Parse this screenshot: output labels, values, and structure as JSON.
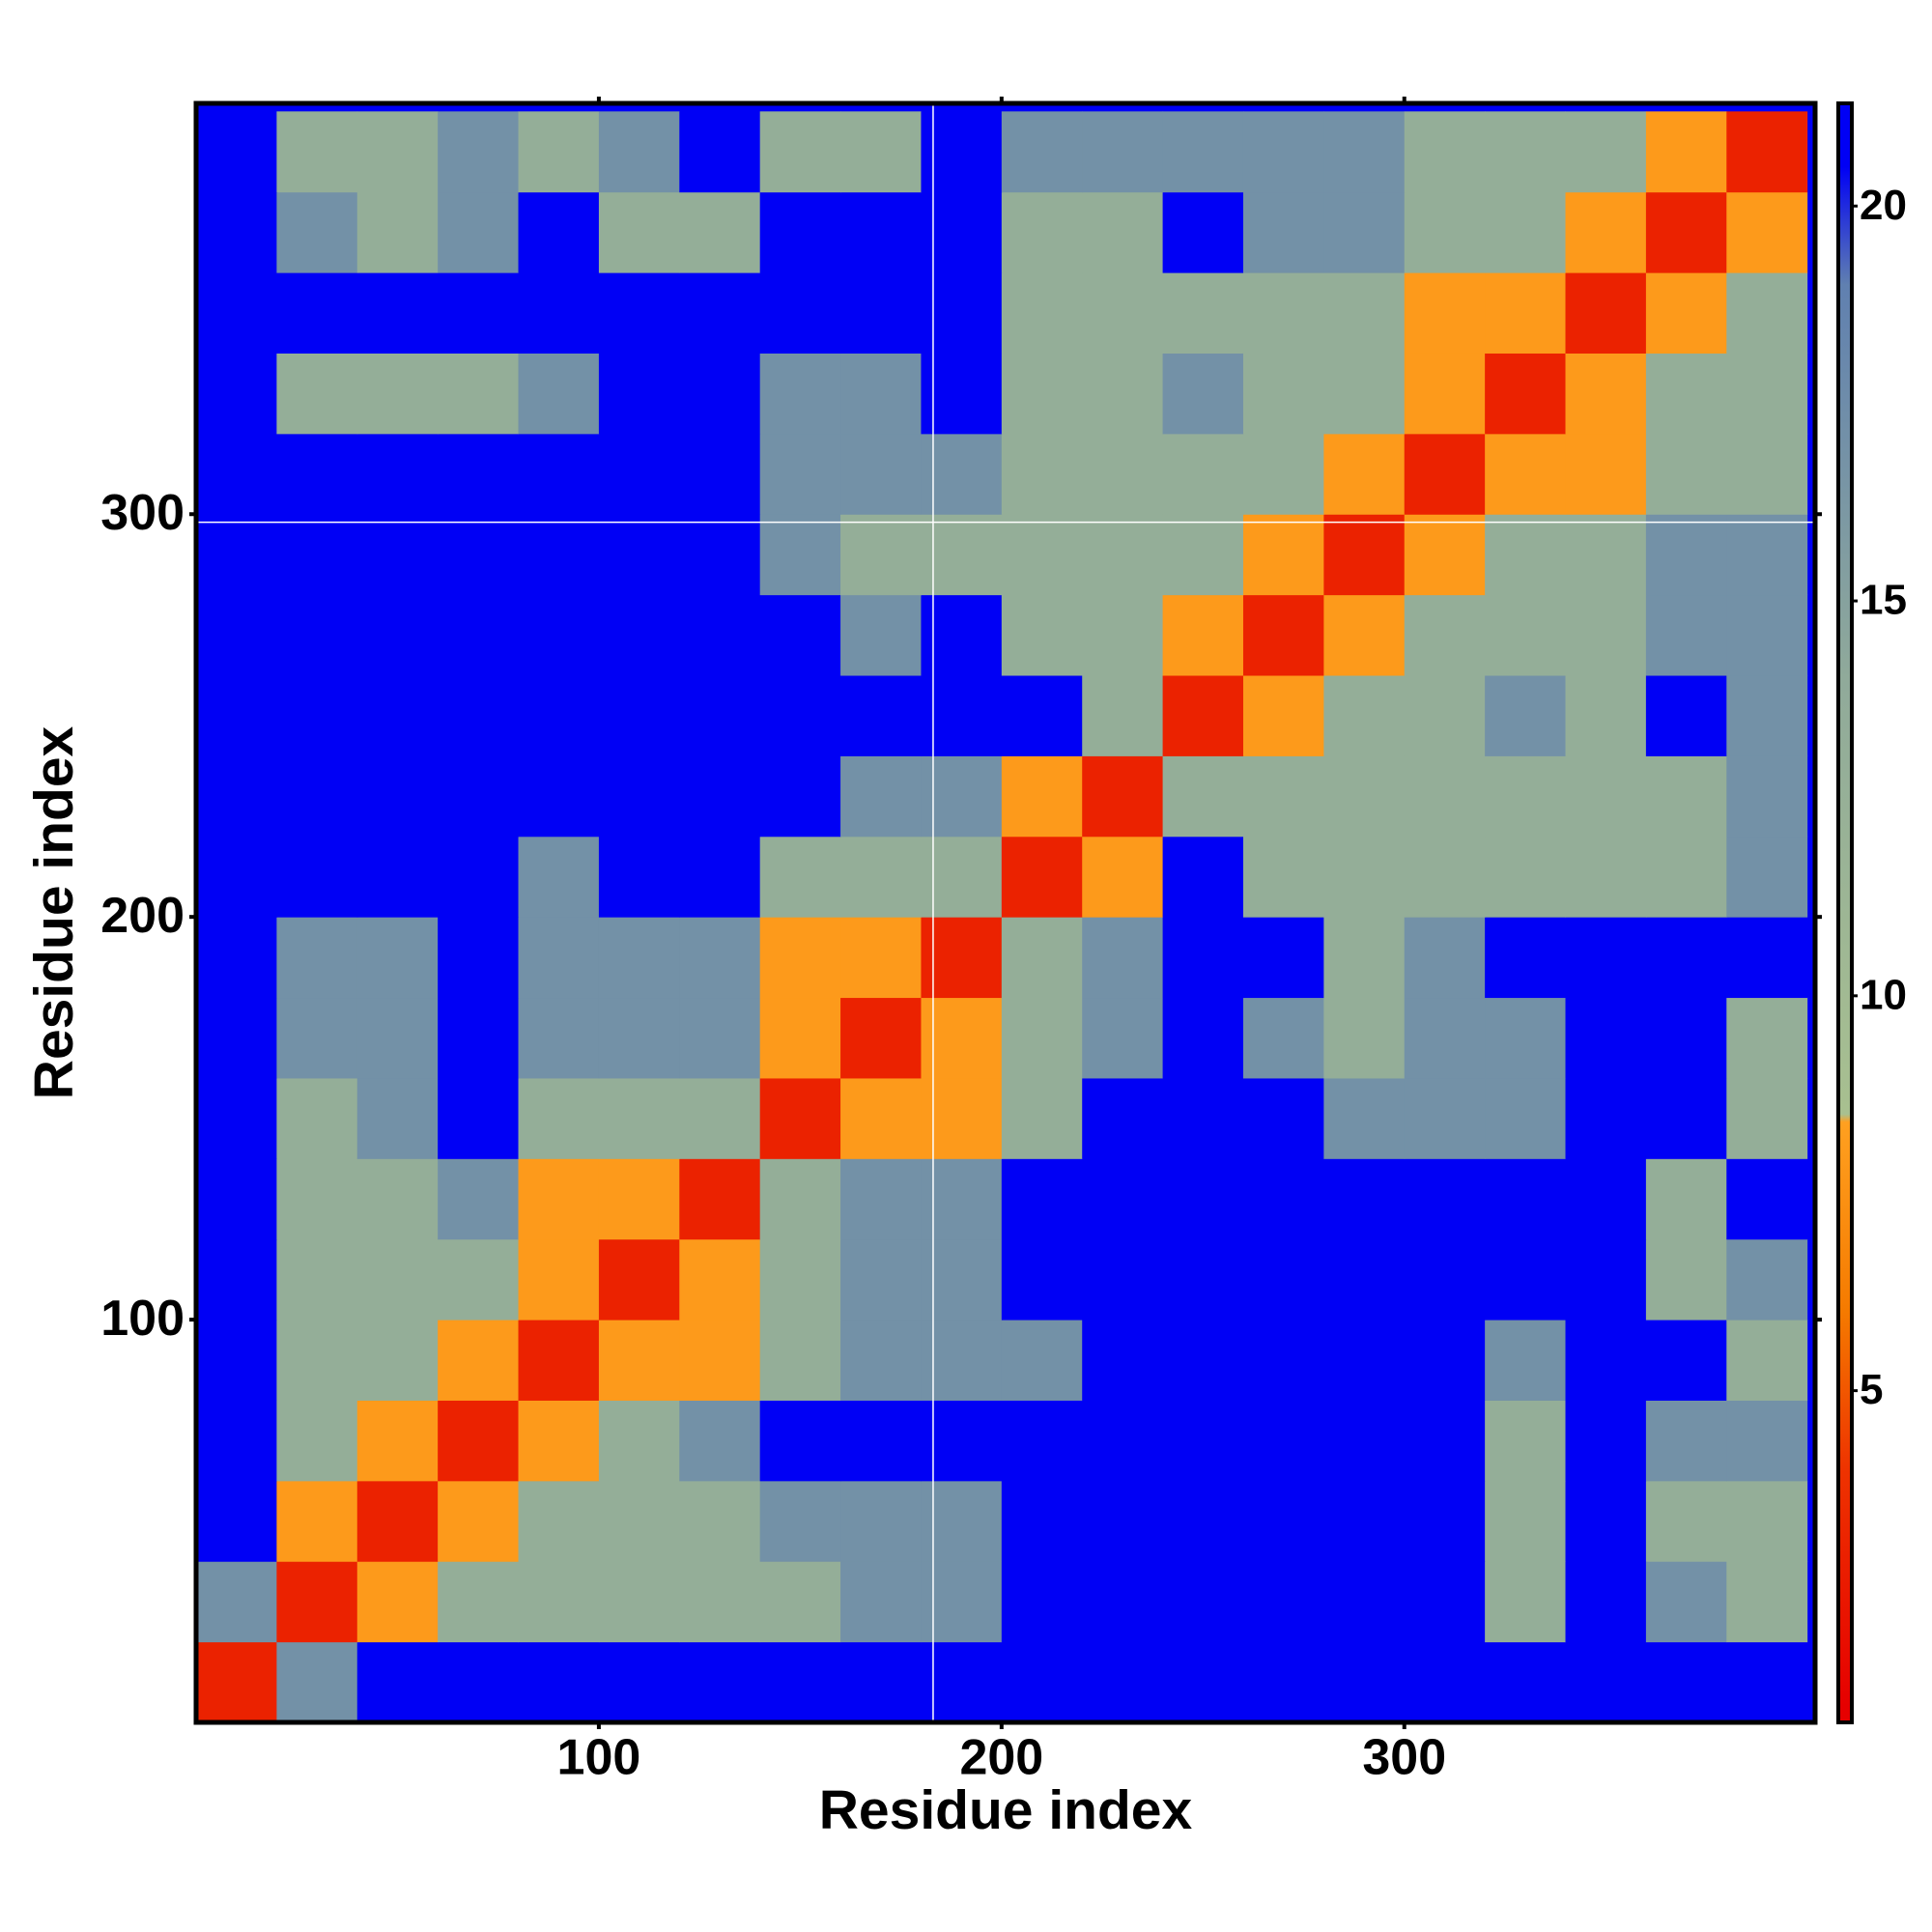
{
  "chart_data": {
    "type": "heatmap",
    "xlabel": "Residue index",
    "ylabel": "Residue index",
    "xlim": [
      0,
      402
    ],
    "ylim": [
      0,
      402
    ],
    "xticks": [
      100,
      200,
      300
    ],
    "yticks": [
      100,
      200,
      300
    ],
    "x_edges": [
      0,
      20,
      40,
      60,
      80,
      100,
      120,
      140,
      160,
      180,
      200,
      220,
      240,
      260,
      280,
      300,
      320,
      340,
      360,
      380,
      400
    ],
    "y_edges": [
      0,
      20,
      40,
      60,
      80,
      100,
      120,
      140,
      160,
      180,
      200,
      220,
      240,
      260,
      280,
      300,
      320,
      340,
      360,
      380,
      400
    ],
    "z": [
      [
        3,
        17,
        21,
        21,
        21,
        21,
        21,
        21,
        21,
        21,
        21,
        21,
        21,
        21,
        21,
        21,
        21,
        21,
        21,
        21
      ],
      [
        17,
        3,
        8,
        13,
        13,
        13,
        13,
        13,
        17,
        17,
        21,
        21,
        21,
        21,
        21,
        21,
        13,
        21,
        17,
        13
      ],
      [
        21,
        8,
        3,
        8,
        13,
        13,
        13,
        17,
        17,
        17,
        21,
        21,
        21,
        21,
        21,
        21,
        13,
        21,
        13,
        13
      ],
      [
        21,
        13,
        8,
        3,
        8,
        13,
        17,
        21,
        21,
        21,
        21,
        21,
        21,
        21,
        21,
        21,
        13,
        21,
        17,
        17
      ],
      [
        21,
        13,
        13,
        8,
        3,
        8,
        8,
        13,
        17,
        17,
        17,
        21,
        21,
        21,
        21,
        21,
        17,
        21,
        21,
        13
      ],
      [
        21,
        13,
        13,
        13,
        8,
        3,
        8,
        13,
        17,
        17,
        21,
        21,
        21,
        21,
        21,
        21,
        21,
        21,
        13,
        17
      ],
      [
        21,
        13,
        13,
        17,
        8,
        8,
        3,
        13,
        17,
        17,
        21,
        21,
        21,
        21,
        21,
        21,
        21,
        21,
        13,
        21
      ],
      [
        21,
        13,
        17,
        21,
        13,
        13,
        13,
        3,
        8,
        8,
        13,
        21,
        21,
        21,
        17,
        17,
        17,
        21,
        21,
        13
      ],
      [
        21,
        17,
        17,
        21,
        17,
        17,
        17,
        8,
        3,
        8,
        13,
        17,
        21,
        17,
        13,
        17,
        17,
        21,
        21,
        13
      ],
      [
        21,
        17,
        17,
        21,
        17,
        17,
        17,
        8,
        8,
        3,
        13,
        17,
        21,
        21,
        13,
        17,
        21,
        21,
        21,
        21
      ],
      [
        21,
        21,
        21,
        21,
        17,
        21,
        21,
        13,
        13,
        13,
        3,
        8,
        21,
        13,
        13,
        13,
        13,
        13,
        13,
        17
      ],
      [
        21,
        21,
        21,
        21,
        21,
        21,
        21,
        21,
        17,
        17,
        8,
        3,
        13,
        13,
        13,
        13,
        13,
        13,
        13,
        17
      ],
      [
        21,
        21,
        21,
        21,
        21,
        21,
        21,
        21,
        21,
        21,
        21,
        13,
        3,
        8,
        13,
        13,
        17,
        13,
        21,
        17
      ],
      [
        21,
        21,
        21,
        21,
        21,
        21,
        21,
        21,
        17,
        21,
        13,
        13,
        8,
        3,
        8,
        13,
        13,
        13,
        17,
        17
      ],
      [
        21,
        21,
        21,
        21,
        21,
        21,
        21,
        17,
        13,
        13,
        13,
        13,
        13,
        8,
        3,
        8,
        13,
        13,
        17,
        17
      ],
      [
        21,
        21,
        21,
        21,
        21,
        21,
        21,
        17,
        17,
        17,
        13,
        13,
        13,
        13,
        8,
        3,
        8,
        8,
        13,
        13
      ],
      [
        21,
        13,
        13,
        13,
        17,
        21,
        21,
        17,
        17,
        21,
        13,
        13,
        17,
        13,
        13,
        8,
        3,
        8,
        13,
        13
      ],
      [
        21,
        21,
        21,
        21,
        21,
        21,
        21,
        21,
        21,
        21,
        13,
        13,
        13,
        13,
        13,
        8,
        8,
        3,
        8,
        13
      ],
      [
        21,
        17,
        13,
        17,
        21,
        13,
        13,
        21,
        21,
        21,
        13,
        13,
        21,
        17,
        17,
        13,
        13,
        8,
        3,
        8
      ],
      [
        21,
        13,
        13,
        17,
        13,
        17,
        21,
        13,
        13,
        21,
        17,
        17,
        17,
        17,
        17,
        13,
        13,
        13,
        8,
        3
      ]
    ],
    "clim": [
      0.8,
      21.3
    ],
    "cticks": [
      5,
      10,
      15,
      20
    ],
    "colorscale": [
      [
        1,
        "#e60000"
      ],
      [
        4,
        "#ee3300"
      ],
      [
        6,
        "#f57a00"
      ],
      [
        8.4,
        "#ffa020"
      ],
      [
        8.5,
        "#a8c090"
      ],
      [
        14,
        "#90aa9a"
      ],
      [
        19,
        "#6080b0"
      ],
      [
        20.5,
        "#0000f5"
      ]
    ],
    "reference_lines": {
      "x": 183,
      "y": 298
    },
    "reference_color": "#ffffff"
  }
}
